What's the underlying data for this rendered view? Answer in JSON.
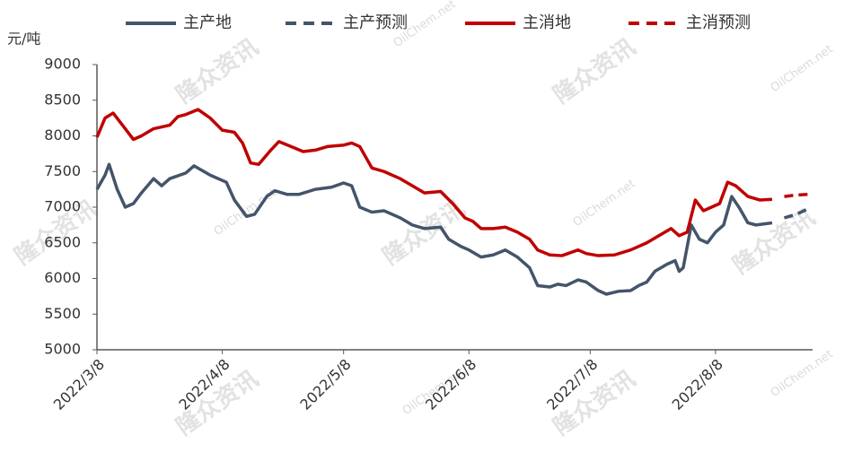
{
  "chart_data": {
    "type": "line",
    "y_label": "元/吨",
    "watermark": [
      "隆众资讯",
      "OilChem.net"
    ],
    "xlim": [
      "2022/3/8",
      "2022/9/1"
    ],
    "xticks": [
      "2022/3/8",
      "2022/4/8",
      "2022/5/8",
      "2022/6/8",
      "2022/7/8",
      "2022/8/8"
    ],
    "ylim": [
      5000,
      9000
    ],
    "yticks": [
      5000,
      5500,
      6000,
      6500,
      7000,
      7500,
      8000,
      8500,
      9000
    ],
    "grid": false,
    "legend": "top",
    "series": [
      {
        "name": "主产地",
        "color": "#44546a",
        "dashed": false,
        "x": [
          "2022/3/8",
          "2022/3/10",
          "2022/3/11",
          "2022/3/13",
          "2022/3/15",
          "2022/3/17",
          "2022/3/19",
          "2022/3/22",
          "2022/3/24",
          "2022/3/26",
          "2022/3/30",
          "2022/4/1",
          "2022/4/5",
          "2022/4/9",
          "2022/4/11",
          "2022/4/14",
          "2022/4/16",
          "2022/4/19",
          "2022/4/21",
          "2022/4/24",
          "2022/4/27",
          "2022/5/1",
          "2022/5/5",
          "2022/5/8",
          "2022/5/10",
          "2022/5/12",
          "2022/5/15",
          "2022/5/18",
          "2022/5/22",
          "2022/5/25",
          "2022/5/28",
          "2022/6/1",
          "2022/6/3",
          "2022/6/6",
          "2022/6/8",
          "2022/6/11",
          "2022/6/14",
          "2022/6/17",
          "2022/6/20",
          "2022/6/23",
          "2022/6/25",
          "2022/6/28",
          "2022/6/30",
          "2022/7/2",
          "2022/7/5",
          "2022/7/7",
          "2022/7/10",
          "2022/7/12",
          "2022/7/15",
          "2022/7/18",
          "2022/7/20",
          "2022/7/22",
          "2022/7/24",
          "2022/7/27",
          "2022/7/29",
          "2022/7/30",
          "2022/7/31",
          "2022/8/2",
          "2022/8/4",
          "2022/8/6",
          "2022/8/8",
          "2022/8/10",
          "2022/8/12",
          "2022/8/14",
          "2022/8/16",
          "2022/8/18",
          "2022/8/22"
        ],
        "values": [
          7250,
          7450,
          7600,
          7250,
          7000,
          7050,
          7200,
          7400,
          7300,
          7400,
          7480,
          7580,
          7450,
          7350,
          7100,
          6870,
          6900,
          7150,
          7230,
          7180,
          7180,
          7250,
          7280,
          7340,
          7300,
          7000,
          6930,
          6950,
          6850,
          6750,
          6700,
          6720,
          6550,
          6450,
          6400,
          6300,
          6330,
          6400,
          6300,
          6150,
          5900,
          5880,
          5920,
          5900,
          5980,
          5950,
          5830,
          5780,
          5820,
          5830,
          5900,
          5950,
          6100,
          6200,
          6250,
          6100,
          6150,
          6750,
          6550,
          6500,
          6650,
          6750,
          7150,
          6980,
          6780,
          6750,
          6780
        ]
      },
      {
        "name": "主产预测",
        "color": "#44546a",
        "dashed": true,
        "x": [
          "2022/8/25",
          "2022/8/28",
          "2022/8/31"
        ],
        "values": [
          6850,
          6900,
          6980
        ]
      },
      {
        "name": "主消地",
        "color": "#c00000",
        "dashed": false,
        "x": [
          "2022/3/8",
          "2022/3/10",
          "2022/3/12",
          "2022/3/15",
          "2022/3/17",
          "2022/3/19",
          "2022/3/22",
          "2022/3/26",
          "2022/3/28",
          "2022/3/30",
          "2022/4/2",
          "2022/4/5",
          "2022/4/8",
          "2022/4/11",
          "2022/4/13",
          "2022/4/15",
          "2022/4/17",
          "2022/4/20",
          "2022/4/22",
          "2022/4/25",
          "2022/4/28",
          "2022/5/1",
          "2022/5/4",
          "2022/5/8",
          "2022/5/10",
          "2022/5/12",
          "2022/5/15",
          "2022/5/18",
          "2022/5/22",
          "2022/5/25",
          "2022/5/28",
          "2022/6/1",
          "2022/6/4",
          "2022/6/7",
          "2022/6/9",
          "2022/6/11",
          "2022/6/14",
          "2022/6/17",
          "2022/6/20",
          "2022/6/23",
          "2022/6/25",
          "2022/6/28",
          "2022/7/1",
          "2022/7/5",
          "2022/7/7",
          "2022/7/10",
          "2022/7/14",
          "2022/7/18",
          "2022/7/22",
          "2022/7/25",
          "2022/7/28",
          "2022/7/30",
          "2022/8/1",
          "2022/8/3",
          "2022/8/5",
          "2022/8/7",
          "2022/8/9",
          "2022/8/11",
          "2022/8/13",
          "2022/8/16",
          "2022/8/19",
          "2022/8/22"
        ],
        "values": [
          7980,
          8250,
          8320,
          8100,
          7950,
          8000,
          8100,
          8150,
          8270,
          8300,
          8370,
          8250,
          8080,
          8050,
          7900,
          7620,
          7600,
          7800,
          7920,
          7850,
          7780,
          7800,
          7850,
          7870,
          7900,
          7850,
          7550,
          7500,
          7400,
          7300,
          7200,
          7220,
          7050,
          6850,
          6800,
          6700,
          6700,
          6720,
          6650,
          6550,
          6400,
          6330,
          6320,
          6400,
          6350,
          6320,
          6330,
          6400,
          6500,
          6600,
          6700,
          6600,
          6650,
          7100,
          6950,
          7000,
          7050,
          7350,
          7300,
          7150,
          7100,
          7110
        ]
      },
      {
        "name": "主消预测",
        "color": "#c00000",
        "dashed": true,
        "x": [
          "2022/8/25",
          "2022/8/28",
          "2022/8/31"
        ],
        "values": [
          7150,
          7170,
          7180
        ]
      }
    ]
  }
}
